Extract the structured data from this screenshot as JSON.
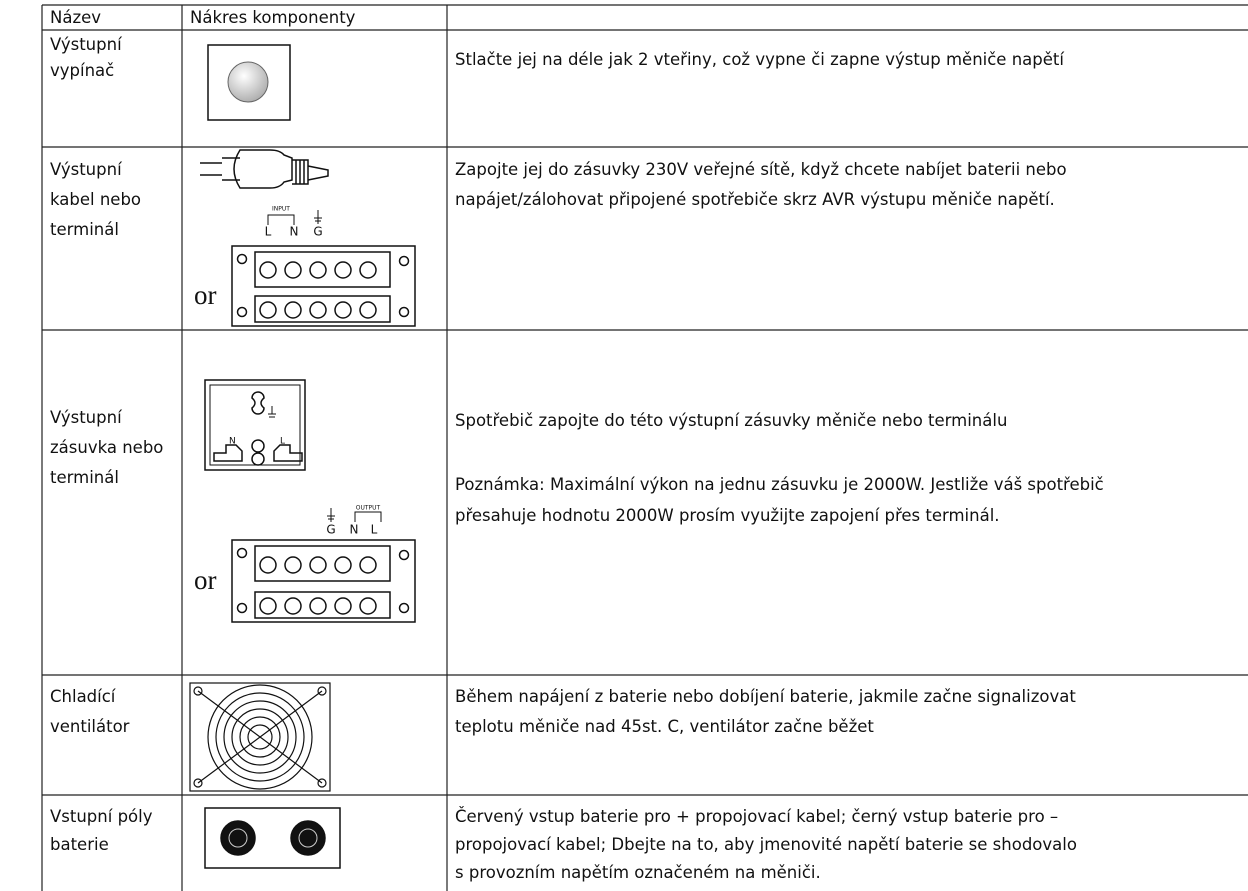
{
  "header": {
    "columns": [
      "Název",
      "Nákres komponenty"
    ]
  },
  "table": {
    "rows": [
      {
        "name": [
          "Výstupní",
          "vypínač"
        ],
        "description": [
          [
            "Stlačte jej na déle jak 2 vteřiny, což vypne či zapne výstup měniče napětí"
          ]
        ]
      },
      {
        "name": [
          "Výstupní",
          "kabel nebo",
          "terminál"
        ],
        "description": [
          [
            "Zapojte jej do zásuvky 230V veřejné sítě, když chcete nabíjet baterii nebo",
            "napájet/zálohovat připojené spotřebiče skrz AVR výstupu měniče napětí."
          ]
        ],
        "drawing_labels": {
          "input": "INPUT",
          "l": "L",
          "n": "N",
          "g": "G",
          "or": "or"
        }
      },
      {
        "name": [
          "Výstupní",
          "zásuvka nebo",
          "terminál"
        ],
        "description": [
          [
            "Spotřebič zapojte do této výstupní zásuvky měniče nebo terminálu"
          ],
          [
            "Poznámka: Maximální výkon na jednu zásuvku je 2000W. Jestliže váš spotřebič",
            "přesahuje hodnotu 2000W prosím využijte zapojení přes terminál."
          ]
        ],
        "drawing_labels": {
          "socket_n": "N",
          "socket_l": "L",
          "output": "OUTPUT",
          "g": "G",
          "n": "N",
          "l": "L",
          "or": "or"
        }
      },
      {
        "name": [
          "Chladící",
          "ventilátor"
        ],
        "description": [
          [
            "Během napájení z baterie nebo dobíjení baterie, jakmile začne signalizovat",
            "teplotu měniče nad 45st. C, ventilátor začne běžet"
          ]
        ]
      },
      {
        "name": [
          "Vstupní póly",
          "baterie"
        ],
        "description": [
          [
            "Červený vstup baterie pro + propojovací kabel; černý vstup baterie pro –",
            "propojovací kabel; Dbejte na to, aby jmenovité napětí baterie se shodovalo",
            "s provozním napětím označeném na měniči."
          ]
        ]
      }
    ]
  }
}
